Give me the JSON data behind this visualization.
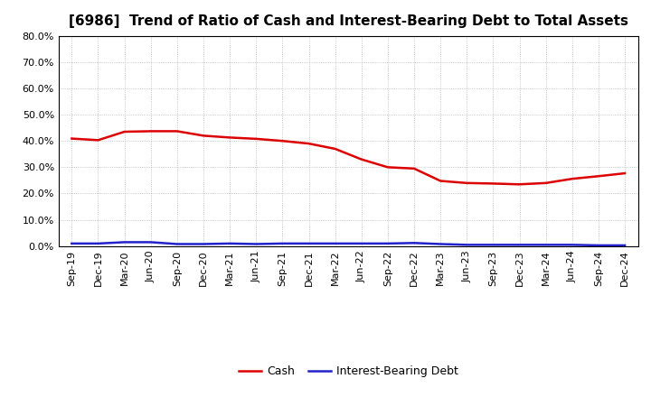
{
  "title": "[6986]  Trend of Ratio of Cash and Interest-Bearing Debt to Total Assets",
  "x_labels": [
    "Sep-19",
    "Dec-19",
    "Mar-20",
    "Jun-20",
    "Sep-20",
    "Dec-20",
    "Mar-21",
    "Jun-21",
    "Sep-21",
    "Dec-21",
    "Mar-22",
    "Jun-22",
    "Sep-22",
    "Dec-22",
    "Mar-23",
    "Jun-23",
    "Sep-23",
    "Dec-23",
    "Mar-24",
    "Jun-24",
    "Sep-24",
    "Dec-24"
  ],
  "cash": [
    0.409,
    0.403,
    0.435,
    0.437,
    0.437,
    0.42,
    0.413,
    0.408,
    0.4,
    0.39,
    0.37,
    0.33,
    0.3,
    0.295,
    0.248,
    0.24,
    0.238,
    0.235,
    0.24,
    0.256,
    0.266,
    0.277
  ],
  "interest_bearing_debt": [
    0.01,
    0.01,
    0.015,
    0.015,
    0.008,
    0.008,
    0.01,
    0.008,
    0.01,
    0.01,
    0.01,
    0.01,
    0.01,
    0.012,
    0.008,
    0.005,
    0.005,
    0.005,
    0.005,
    0.005,
    0.003,
    0.003
  ],
  "cash_color": "#dd0000",
  "debt_color": "#2222cc",
  "background_color": "#ffffff",
  "grid_color": "#999999",
  "ylim": [
    0.0,
    0.8
  ],
  "yticks": [
    0.0,
    0.1,
    0.2,
    0.3,
    0.4,
    0.5,
    0.6,
    0.7,
    0.8
  ],
  "legend_cash": "Cash",
  "legend_debt": "Interest-Bearing Debt",
  "title_fontsize": 11,
  "axis_fontsize": 8,
  "legend_fontsize": 9,
  "line_width": 1.8
}
